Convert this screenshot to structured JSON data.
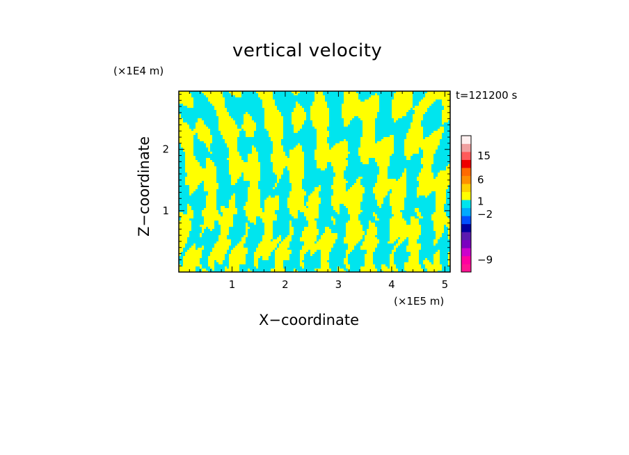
{
  "chart_data": {
    "type": "heatmap",
    "title": "vertical velocity",
    "xlabel": "X−coordinate",
    "ylabel": "Z−coordinate",
    "x_unit": "(×1E5 m)",
    "z_unit": "(×1E4 m)",
    "time_label": "t=121200 s",
    "xlim": [
      0,
      5.1
    ],
    "ylim": [
      0,
      2.95
    ],
    "x_ticks": [
      "1",
      "2",
      "3",
      "4",
      "5"
    ],
    "x_tick_values": [
      1,
      2,
      3,
      4,
      5
    ],
    "y_ticks": [
      "1",
      "2"
    ],
    "y_tick_values": [
      1,
      2
    ],
    "fill_colors": {
      "positive": "#ffff00",
      "negative": "#00e5ee"
    },
    "colorbar": {
      "labels": [
        "15",
        "6",
        "1",
        "−2",
        "−9"
      ],
      "label_levels": [
        15,
        6,
        1,
        -2,
        -9
      ],
      "bands": [
        {
          "color": "#ff1493"
        },
        {
          "color": "#ff00a0"
        },
        {
          "color": "#cc00cc"
        },
        {
          "color": "#7b00c0"
        },
        {
          "color": "#5a1ab0"
        },
        {
          "color": "#0000a0"
        },
        {
          "color": "#0050ff"
        },
        {
          "color": "#00aaff"
        },
        {
          "color": "#00e5ee"
        },
        {
          "color": "#ffff00"
        },
        {
          "color": "#ffd000"
        },
        {
          "color": "#ff9000"
        },
        {
          "color": "#ff6a00"
        },
        {
          "color": "#ee0000"
        },
        {
          "color": "#ff5a5a"
        },
        {
          "color": "#f0a0a0"
        },
        {
          "color": "#fff0f0"
        }
      ]
    }
  }
}
